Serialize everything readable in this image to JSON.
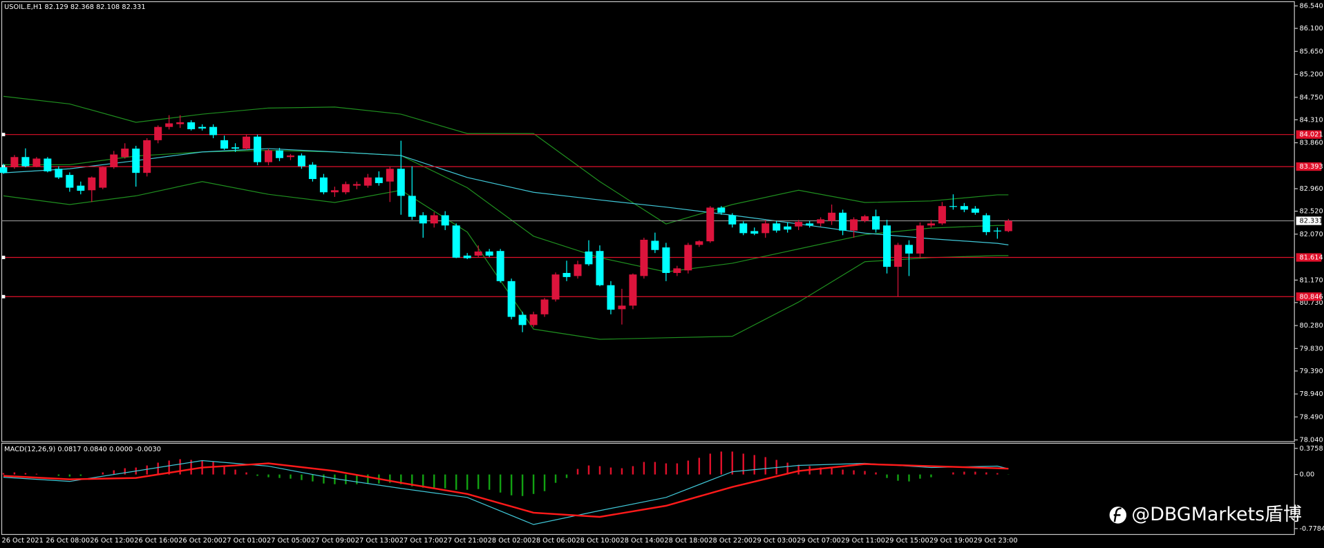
{
  "chart_data": [
    {
      "type": "candlestick",
      "header": "USOIL.E,H1  82.129 82.368 82.108 82.331",
      "categories": [
        "26 Oct 2021",
        null,
        null,
        null,
        "26 Oct 08:00",
        null,
        null,
        null,
        "26 Oct 12:00",
        null,
        null,
        null,
        "26 Oct 16:00",
        null,
        null,
        null,
        "26 Oct 20:00",
        null,
        null,
        null,
        "27 Oct 01:00",
        null,
        null,
        null,
        "27 Oct 05:00",
        null,
        null,
        null,
        "27 Oct 09:00",
        null,
        null,
        null,
        "27 Oct 13:00",
        null,
        null,
        null,
        "27 Oct 17:00",
        null,
        null,
        null,
        "27 Oct 21:00",
        null,
        null,
        null,
        "28 Oct 02:00",
        null,
        null,
        null,
        "28 Oct 06:00",
        null,
        null,
        null,
        "28 Oct 10:00",
        null,
        null,
        null,
        "28 Oct 14:00",
        null,
        null,
        null,
        "28 Oct 18:00",
        null,
        null,
        null,
        "28 Oct 22:00",
        null,
        null,
        null,
        "29 Oct 03:00",
        null,
        null,
        null,
        "29 Oct 07:00",
        null,
        null,
        null,
        "29 Oct 11:00",
        null,
        null,
        null,
        "29 Oct 15:00",
        null,
        null,
        null,
        "29 Oct 19:00",
        null,
        null,
        null,
        "29 Oct 23:00",
        null,
        null,
        null
      ],
      "open": [
        83.38,
        83.38,
        83.58,
        83.4,
        83.55,
        83.35,
        83.23,
        83.02,
        82.93,
        82.98,
        83.38,
        83.58,
        83.745,
        83.27,
        83.91,
        84.17,
        84.225,
        84.26,
        84.17,
        84.17,
        83.91,
        83.77,
        83.745,
        83.98,
        83.48,
        83.71,
        83.58,
        83.61,
        83.43,
        83.18,
        82.89,
        82.89,
        83.02,
        83.02,
        83.18,
        83.1,
        83.35,
        82.82,
        82.44,
        82.28,
        82.44,
        82.24,
        81.65,
        81.65,
        81.73,
        81.74,
        81.15,
        80.49,
        80.29,
        80.5,
        80.79,
        81.31,
        81.25,
        81.73,
        81.74,
        81.07,
        80.6,
        80.67,
        81.25,
        81.94,
        81.81,
        81.31,
        81.36,
        81.86,
        81.93,
        82.59,
        82.44,
        82.28,
        82.13,
        82.09,
        82.28,
        82.22,
        82.22,
        82.28,
        82.28,
        82.33,
        82.49,
        82.14,
        82.33,
        82.42,
        82.24,
        81.43,
        81.86,
        81.69,
        82.24,
        82.28,
        82.62,
        82.62,
        82.57,
        82.44,
        82.14,
        82.129
      ],
      "high": [
        83.45,
        83.62,
        83.75,
        83.58,
        83.58,
        83.4,
        83.28,
        83.1,
        83.2,
        83.4,
        83.7,
        83.85,
        83.8,
        83.95,
        84.2,
        84.4,
        84.4,
        84.3,
        84.22,
        84.22,
        84.0,
        83.85,
        84.02,
        84.02,
        83.75,
        83.76,
        83.64,
        83.65,
        83.48,
        83.25,
        83.0,
        83.1,
        83.1,
        83.25,
        83.3,
        83.4,
        83.9,
        83.4,
        82.5,
        82.5,
        82.52,
        82.28,
        81.7,
        81.85,
        81.78,
        81.78,
        81.2,
        80.55,
        80.55,
        80.82,
        81.32,
        81.55,
        81.55,
        81.95,
        81.85,
        81.15,
        81.0,
        81.3,
        82.0,
        82.1,
        81.9,
        81.45,
        81.9,
        81.95,
        82.62,
        82.62,
        82.48,
        82.32,
        82.2,
        82.35,
        82.33,
        82.3,
        82.35,
        82.33,
        82.4,
        82.65,
        82.55,
        82.4,
        82.45,
        82.55,
        82.35,
        81.9,
        81.95,
        82.3,
        82.35,
        82.7,
        82.85,
        82.68,
        82.62,
        82.48,
        82.2,
        82.368
      ],
      "low": [
        83.25,
        83.35,
        83.38,
        83.38,
        83.28,
        83.15,
        82.9,
        82.85,
        82.7,
        82.95,
        83.35,
        83.55,
        83.0,
        83.2,
        83.85,
        84.12,
        84.15,
        84.1,
        84.1,
        83.95,
        83.72,
        83.68,
        83.72,
        83.42,
        83.42,
        83.5,
        83.52,
        83.35,
        83.1,
        82.85,
        82.8,
        82.85,
        82.95,
        82.98,
        83.02,
        82.7,
        82.45,
        82.35,
        82.0,
        82.2,
        82.15,
        81.6,
        81.58,
        81.62,
        81.62,
        81.12,
        80.4,
        80.15,
        80.25,
        80.45,
        80.75,
        81.15,
        81.2,
        81.45,
        81.05,
        80.5,
        80.3,
        80.6,
        81.2,
        81.7,
        81.15,
        81.25,
        81.3,
        81.82,
        81.9,
        82.45,
        82.2,
        82.05,
        82.05,
        82.0,
        82.1,
        82.1,
        82.15,
        82.2,
        82.22,
        82.25,
        82.05,
        82.0,
        82.3,
        82.1,
        81.3,
        80.85,
        81.25,
        81.6,
        82.2,
        82.25,
        82.55,
        82.5,
        82.45,
        82.05,
        81.98,
        82.108
      ],
      "close": [
        83.27,
        83.58,
        83.4,
        83.55,
        83.3,
        83.18,
        82.98,
        82.92,
        83.18,
        83.38,
        83.63,
        83.745,
        83.27,
        83.91,
        84.17,
        84.24,
        84.26,
        84.125,
        84.14,
        84.01,
        83.745,
        83.745,
        83.98,
        83.48,
        83.71,
        83.56,
        83.61,
        83.4,
        83.15,
        82.89,
        82.93,
        83.05,
        83.05,
        83.18,
        83.07,
        83.35,
        82.82,
        82.41,
        82.28,
        82.44,
        82.24,
        81.61,
        81.6,
        81.73,
        81.65,
        81.15,
        80.45,
        80.29,
        80.5,
        80.79,
        81.28,
        81.23,
        81.48,
        81.48,
        81.07,
        80.59,
        80.67,
        81.28,
        81.96,
        81.76,
        81.31,
        81.4,
        81.86,
        81.93,
        82.59,
        82.49,
        82.26,
        82.09,
        82.08,
        82.28,
        82.14,
        82.16,
        82.31,
        82.24,
        82.36,
        82.49,
        82.14,
        82.36,
        82.42,
        82.16,
        81.43,
        81.86,
        81.69,
        82.24,
        82.28,
        82.62,
        82.61,
        82.55,
        82.49,
        82.11,
        82.13,
        82.331
      ],
      "colors": {
        "up": "#dc143c",
        "down": "#00ffff"
      },
      "line_index": [
        0,
        6,
        12,
        18,
        24,
        30,
        36,
        42,
        48,
        54,
        60,
        66,
        72,
        78,
        84,
        90,
        91
      ],
      "overlays": [
        {
          "color": "#1f8f1f",
          "values": [
            84.77,
            84.62,
            84.26,
            84.42,
            84.54,
            84.56,
            84.42,
            84.04,
            84.04,
            83.1,
            82.27,
            82.65,
            82.93,
            82.69,
            82.72,
            82.84,
            82.84
          ]
        },
        {
          "color": "#1f8f1f",
          "values": [
            83.43,
            83.43,
            83.6,
            83.68,
            83.71,
            83.68,
            83.61,
            82.98,
            82.03,
            81.61,
            81.33,
            81.5,
            81.78,
            82.06,
            82.19,
            82.24,
            82.24
          ]
        },
        {
          "color": "#1f8f1f",
          "values": [
            82.82,
            82.65,
            82.82,
            83.1,
            82.85,
            82.69,
            82.93,
            82.11,
            80.21,
            80.01,
            80.04,
            80.07,
            80.74,
            81.53,
            81.61,
            81.65,
            81.65
          ]
        },
        {
          "color": "#40c8d8",
          "values": [
            83.27,
            83.35,
            83.51,
            83.68,
            83.745,
            83.68,
            83.61,
            83.18,
            82.89,
            82.74,
            82.6,
            82.44,
            82.27,
            82.09,
            81.98,
            81.89,
            81.86
          ]
        }
      ],
      "levels": [
        84.021,
        83.393,
        81.614,
        80.846
      ],
      "level_color": "#e0102a",
      "current_price": 82.331,
      "ylim": [
        78.04,
        86.54
      ],
      "yticks": [
        {
          "value": 86.54,
          "label": "86.540"
        },
        {
          "value": 86.1,
          "label": "86.100"
        },
        {
          "value": 85.65,
          "label": "85.650"
        },
        {
          "value": 85.2,
          "label": "85.200"
        },
        {
          "value": 84.75,
          "label": "84.750"
        },
        {
          "value": 84.31,
          "label": "84.310"
        },
        {
          "value": 83.86,
          "label": "83.860"
        },
        {
          "value": 82.96,
          "label": "82.960"
        },
        {
          "value": 82.52,
          "label": "82.520"
        },
        {
          "value": 82.07,
          "label": "82.070"
        },
        {
          "value": 81.17,
          "label": "81.170"
        },
        {
          "value": 80.73,
          "label": "80.730"
        },
        {
          "value": 80.28,
          "label": "80.280"
        },
        {
          "value": 79.83,
          "label": "79.830"
        },
        {
          "value": 79.39,
          "label": "79.390"
        },
        {
          "value": 78.94,
          "label": "78.940"
        },
        {
          "value": 78.49,
          "label": "78.490"
        },
        {
          "value": 78.04,
          "label": "78.040"
        }
      ]
    },
    {
      "type": "macd",
      "header": "MACD(12,26,9) 0.0817 0.0840 0.0000 -0.0030",
      "histogram": [
        0.02,
        0.03,
        0.02,
        0.01,
        0.0,
        -0.02,
        -0.03,
        -0.02,
        0.0,
        0.03,
        0.06,
        0.09,
        0.1,
        0.13,
        0.17,
        0.2,
        0.22,
        0.21,
        0.2,
        0.18,
        0.12,
        0.07,
        0.03,
        -0.02,
        -0.04,
        -0.05,
        -0.06,
        -0.08,
        -0.1,
        -0.13,
        -0.14,
        -0.14,
        -0.14,
        -0.13,
        -0.13,
        -0.12,
        -0.14,
        -0.17,
        -0.19,
        -0.19,
        -0.2,
        -0.22,
        -0.22,
        -0.21,
        -0.22,
        -0.26,
        -0.3,
        -0.31,
        -0.28,
        -0.24,
        -0.12,
        -0.05,
        0.08,
        0.13,
        0.12,
        0.1,
        0.09,
        0.12,
        0.18,
        0.18,
        0.16,
        0.16,
        0.2,
        0.24,
        0.3,
        0.33,
        0.33,
        0.3,
        0.28,
        0.25,
        0.21,
        0.17,
        0.14,
        0.12,
        0.1,
        0.1,
        0.07,
        0.06,
        0.05,
        0.03,
        -0.05,
        -0.09,
        -0.1,
        -0.06,
        -0.04,
        0.0,
        0.03,
        0.04,
        0.04,
        0.03,
        0.02,
        -0.003
      ],
      "bar_colors": {
        "positive": "#e0102a",
        "negative": "#12a012"
      },
      "line_index": [
        0,
        6,
        12,
        18,
        24,
        30,
        36,
        42,
        48,
        54,
        60,
        66,
        72,
        78,
        84,
        90,
        91
      ],
      "lines": [
        {
          "color": "#40c8d8",
          "values": [
            -0.04,
            -0.1,
            0.05,
            0.2,
            0.12,
            -0.06,
            -0.2,
            -0.33,
            -0.72,
            -0.52,
            -0.33,
            0.04,
            0.13,
            0.16,
            0.1,
            0.12,
            0.0817
          ]
        },
        {
          "color": "#ff1a1a",
          "values": [
            -0.02,
            -0.07,
            -0.05,
            0.1,
            0.16,
            0.05,
            -0.12,
            -0.28,
            -0.55,
            -0.61,
            -0.45,
            -0.18,
            0.05,
            0.15,
            0.12,
            0.09,
            0.084
          ]
        }
      ],
      "ylim": [
        -0.7784,
        0.3758
      ],
      "yticks": [
        0.3758,
        {
          "value": 0,
          "label": "0.00"
        },
        -0.7784
      ]
    }
  ],
  "watermark": "@DBGMarkets盾博"
}
